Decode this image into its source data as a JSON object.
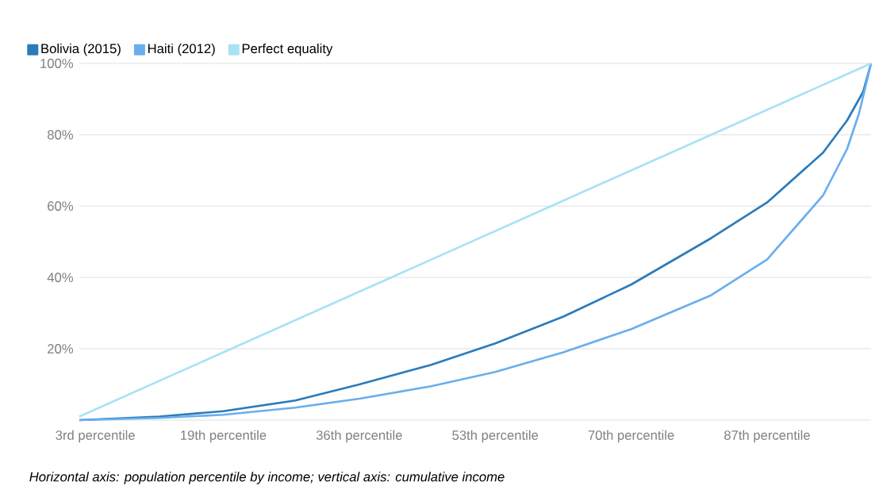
{
  "chart_data": {
    "type": "line",
    "xlim": [
      1,
      100
    ],
    "ylim": [
      0,
      100
    ],
    "xticks": [
      {
        "value": 3,
        "label": "3rd percentile"
      },
      {
        "value": 19,
        "label": "19th percentile"
      },
      {
        "value": 36,
        "label": "36th percentile"
      },
      {
        "value": 53,
        "label": "53th percentile"
      },
      {
        "value": 70,
        "label": "70th percentile"
      },
      {
        "value": 87,
        "label": "87th percentile"
      }
    ],
    "yticks": [
      {
        "value": 0,
        "label": null
      },
      {
        "value": 20,
        "label": "20%"
      },
      {
        "value": 40,
        "label": "40%"
      },
      {
        "value": 60,
        "label": "60%"
      },
      {
        "value": 80,
        "label": "80%"
      },
      {
        "value": 100,
        "label": "100%"
      }
    ],
    "grid": "y",
    "legend": "top left",
    "series": [
      {
        "name": "Bolivia (2015)",
        "color": "#2b7bba",
        "x": [
          1,
          11,
          19,
          28,
          36,
          45,
          53,
          61.5,
          70,
          80,
          87,
          94,
          97,
          99,
          100
        ],
        "values": [
          0,
          1,
          2.5,
          5.5,
          10,
          15.5,
          21.5,
          29,
          38,
          51,
          61,
          75,
          84,
          92,
          100
        ]
      },
      {
        "name": "Haiti (2012)",
        "color": "#6aaeed",
        "x": [
          1,
          11,
          19,
          28,
          36,
          45,
          53,
          61.5,
          70,
          80,
          87,
          94,
          97,
          98.5,
          100
        ],
        "values": [
          0,
          0.6,
          1.5,
          3.5,
          6,
          9.5,
          13.5,
          19,
          25.5,
          35,
          45,
          63,
          76,
          86,
          100
        ]
      },
      {
        "name": "Perfect equality",
        "color": "#a8e2f5",
        "x": [
          1,
          100
        ],
        "values": [
          1,
          100
        ]
      }
    ],
    "annotations": [
      "*Horizontal axis: population percentile by income; vertical axis: cumulative income*"
    ]
  }
}
